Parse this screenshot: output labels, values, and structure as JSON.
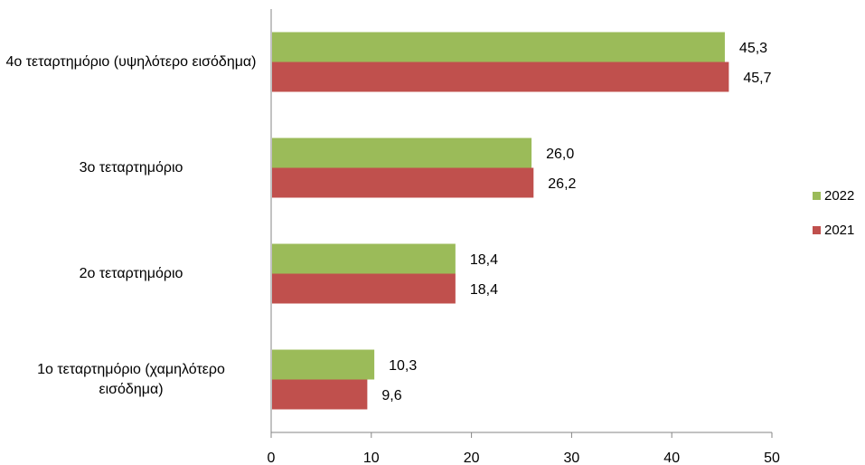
{
  "chart_data": {
    "type": "bar",
    "orientation": "horizontal",
    "categories": [
      "4ο τεταρτημόριο (υψηλότερο εισόδημα)",
      "3ο τεταρτημόριο",
      "2ο τεταρτημόριο",
      "1ο τεταρτημόριο (χαμηλότερο εισόδημα)"
    ],
    "series": [
      {
        "name": "2022",
        "color": "#9bbb59",
        "values": [
          45.3,
          26.0,
          18.4,
          10.3
        ],
        "labels": [
          "45,3",
          "26,0",
          "18,4",
          "10,3"
        ]
      },
      {
        "name": "2021",
        "color": "#c0504d",
        "values": [
          45.7,
          26.2,
          18.4,
          9.6
        ],
        "labels": [
          "45,7",
          "26,2",
          "18,4",
          "9,6"
        ]
      }
    ],
    "xlim": [
      0,
      50
    ],
    "xticks": [
      "0",
      "10",
      "20",
      "30",
      "40",
      "50"
    ],
    "grid": false,
    "legend_position": "right"
  }
}
